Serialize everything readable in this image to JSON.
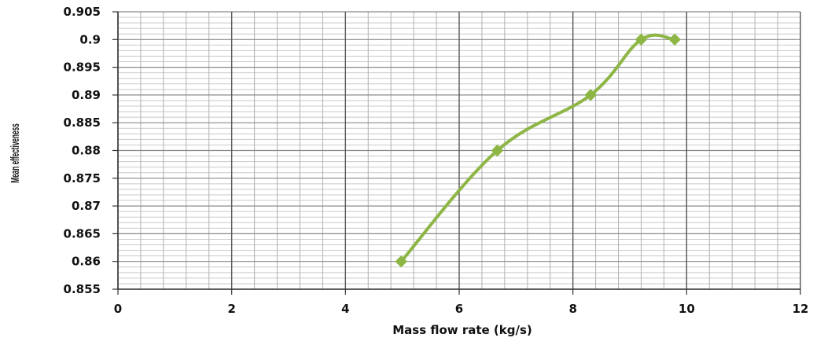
{
  "chart_data": {
    "type": "line",
    "title": "",
    "xlabel": "Mass flow rate (kg/s)",
    "ylabel": "Mean effectiveness",
    "xlim": [
      0,
      12
    ],
    "ylim": [
      0.855,
      0.905
    ],
    "x_ticks": [
      "0",
      "2",
      "4",
      "6",
      "8",
      "10",
      "12"
    ],
    "y_ticks": [
      "0.855",
      "0.86",
      "0.865",
      "0.87",
      "0.875",
      "0.88",
      "0.885",
      "0.89",
      "0.895",
      "0.9",
      "0.905"
    ],
    "grid": true,
    "legend": "none",
    "series": [
      {
        "x": [
          4.98,
          6.67,
          8.31,
          9.2,
          9.79
        ],
        "y": [
          0.86,
          0.88,
          0.89,
          0.9,
          0.9
        ],
        "color": "#8db645",
        "marker": "diamond",
        "smooth": true
      }
    ]
  }
}
